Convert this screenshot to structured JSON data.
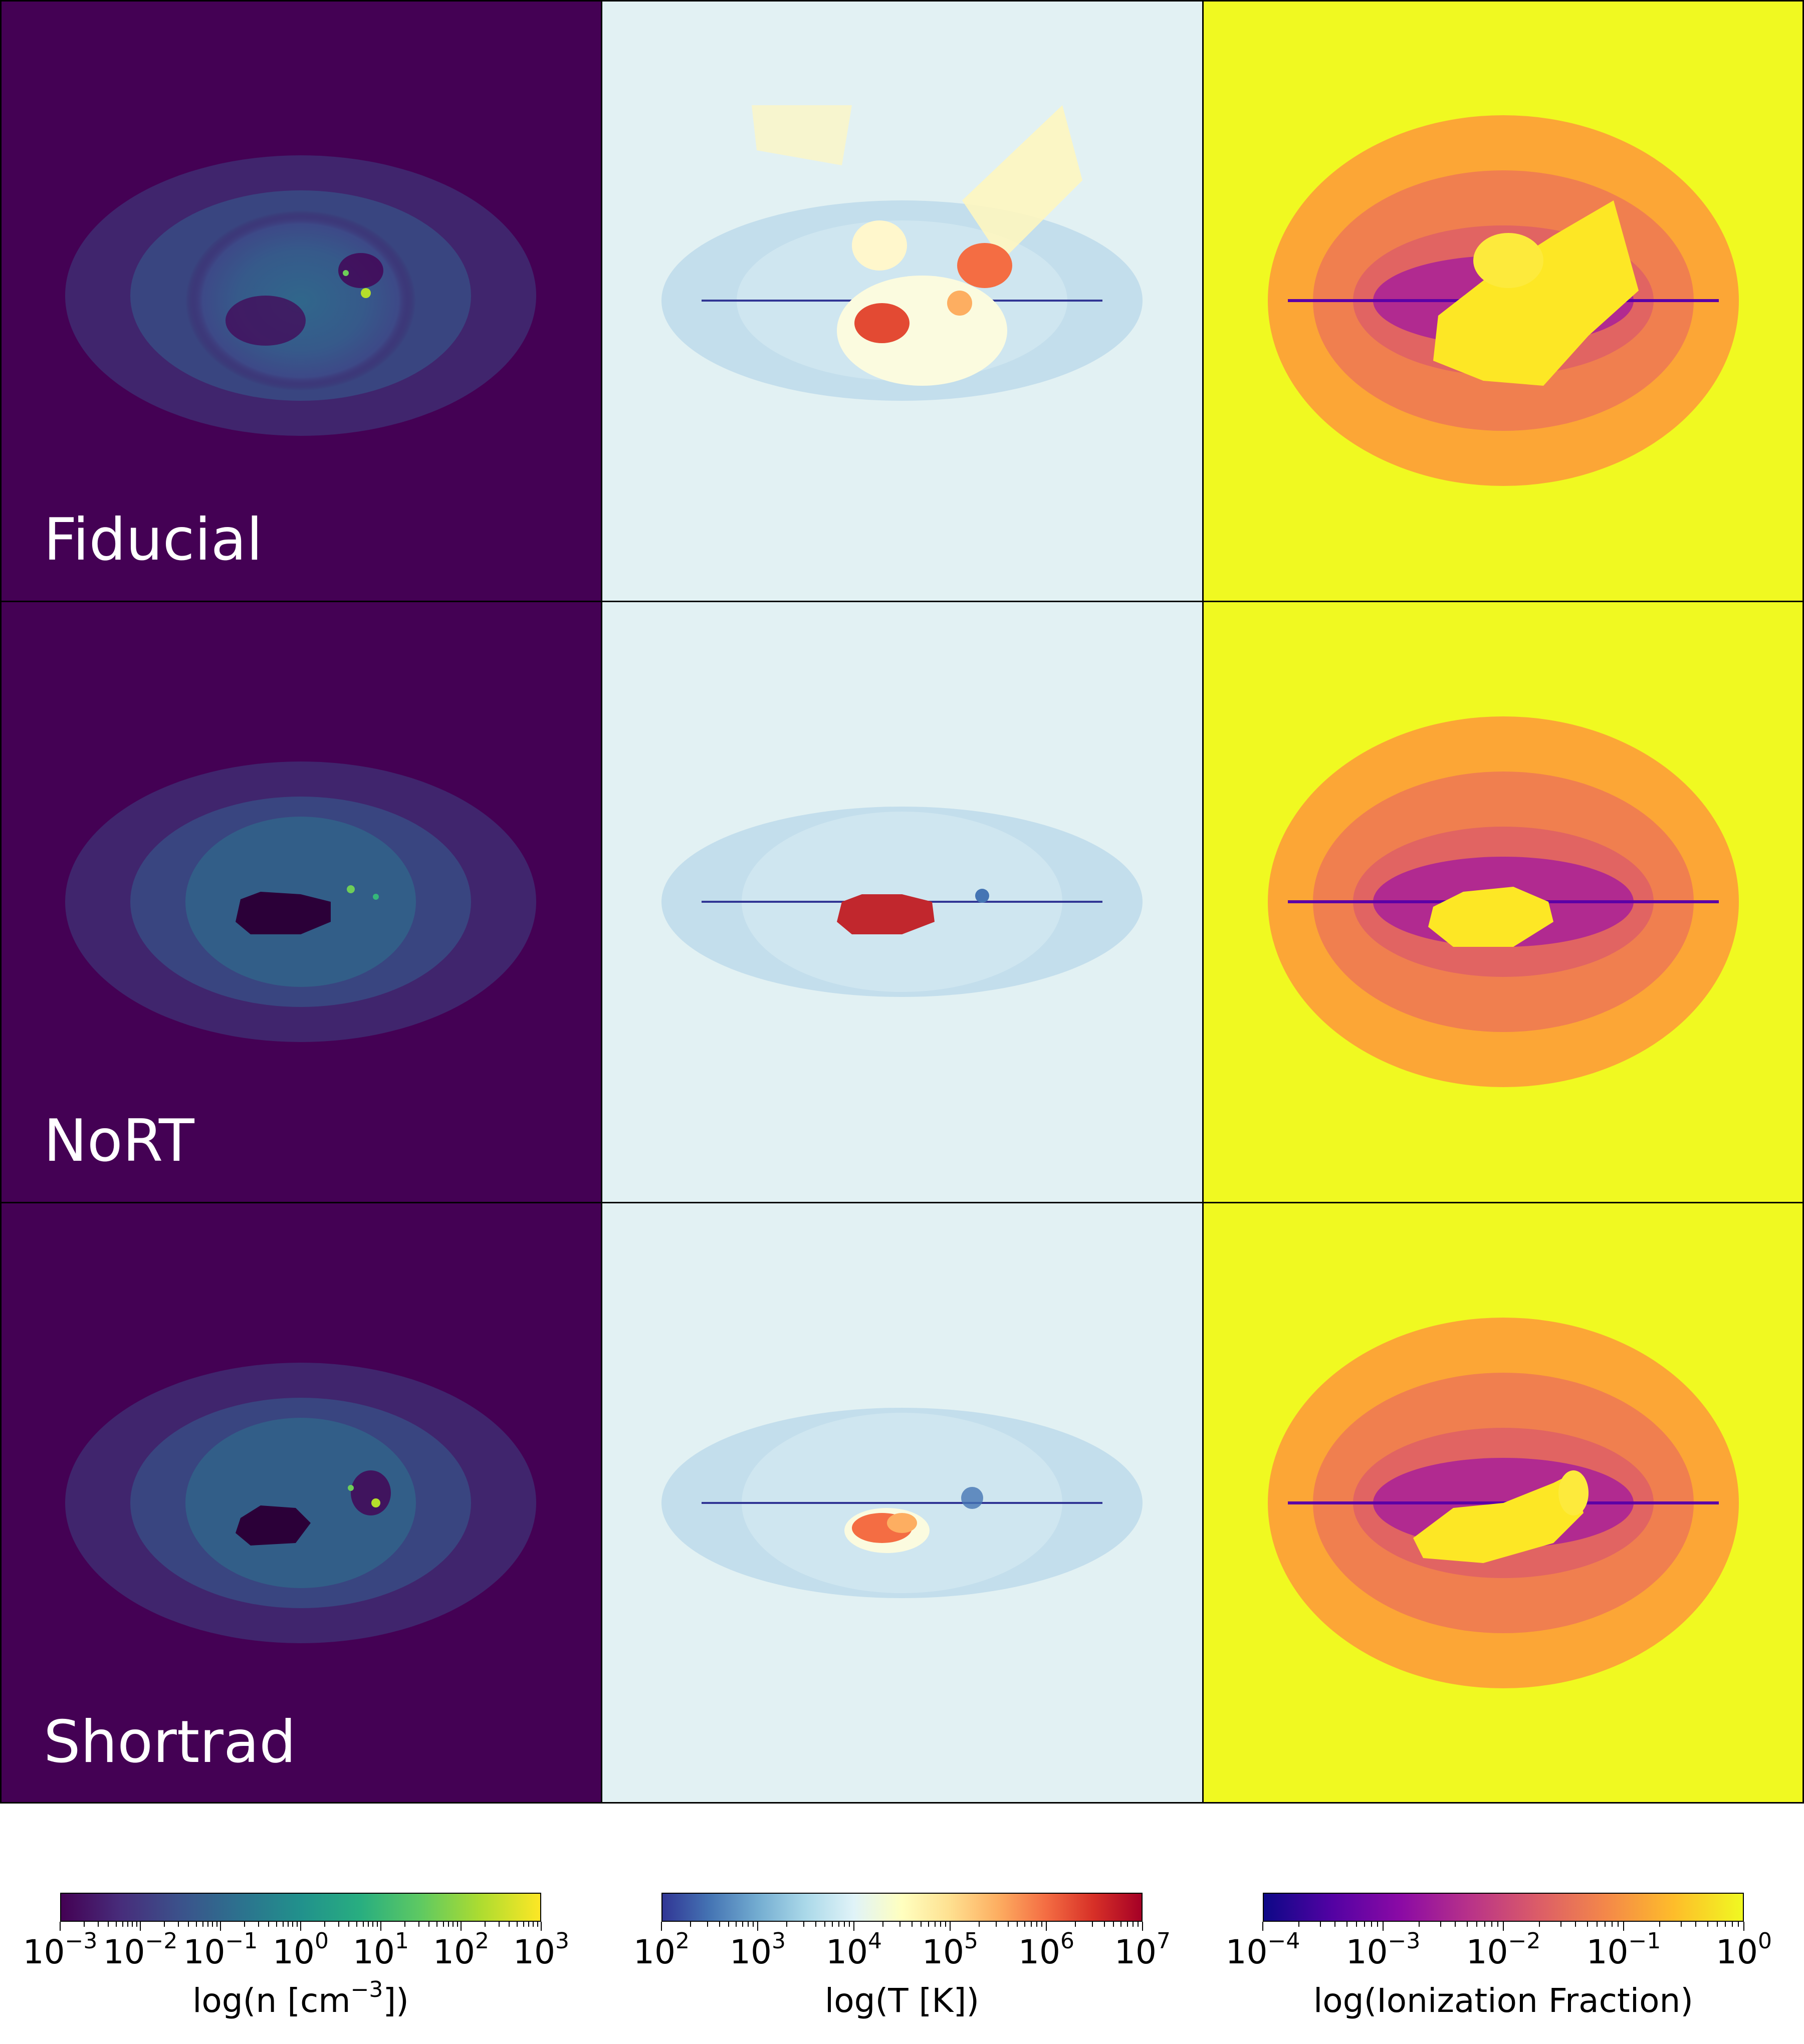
{
  "rows": [
    {
      "label": "Fiducial"
    },
    {
      "label": "NoRT"
    },
    {
      "label": "Shortrad"
    }
  ],
  "colorbars": [
    {
      "label_prefix": "log(n [cm",
      "label_exp": "−3",
      "label_suffix": "])",
      "colormap": "viridis",
      "ticks": [
        {
          "base": "10",
          "exp": "−3"
        },
        {
          "base": "10",
          "exp": "−2"
        },
        {
          "base": "10",
          "exp": "−1"
        },
        {
          "base": "10",
          "exp": "0"
        },
        {
          "base": "10",
          "exp": "1"
        },
        {
          "base": "10",
          "exp": "2"
        },
        {
          "base": "10",
          "exp": "3"
        }
      ]
    },
    {
      "label_prefix": "log(T [K])",
      "label_exp": "",
      "label_suffix": "",
      "colormap": "RdYlBu_r",
      "ticks": [
        {
          "base": "10",
          "exp": "2"
        },
        {
          "base": "10",
          "exp": "3"
        },
        {
          "base": "10",
          "exp": "4"
        },
        {
          "base": "10",
          "exp": "5"
        },
        {
          "base": "10",
          "exp": "6"
        },
        {
          "base": "10",
          "exp": "7"
        }
      ]
    },
    {
      "label_prefix": "log(Ionization Fraction)",
      "label_exp": "",
      "label_suffix": "",
      "colormap": "plasma",
      "ticks": [
        {
          "base": "10",
          "exp": "−4"
        },
        {
          "base": "10",
          "exp": "−3"
        },
        {
          "base": "10",
          "exp": "−2"
        },
        {
          "base": "10",
          "exp": "−1"
        },
        {
          "base": "10",
          "exp": "0"
        }
      ]
    }
  ]
}
